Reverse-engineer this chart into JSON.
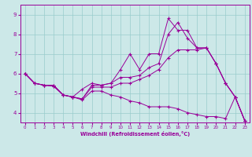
{
  "bg_color": "#cce8e8",
  "line_color": "#990099",
  "grid_color": "#99cccc",
  "xlabel": "Windchill (Refroidissement éolien,°C)",
  "ylim": [
    3.5,
    9.5
  ],
  "xlim": [
    -0.5,
    23.5
  ],
  "yticks": [
    4,
    5,
    6,
    7,
    8,
    9
  ],
  "xticks": [
    0,
    1,
    2,
    3,
    4,
    5,
    6,
    7,
    8,
    9,
    10,
    11,
    12,
    13,
    14,
    15,
    16,
    17,
    18,
    19,
    20,
    21,
    22,
    23
  ],
  "curve1_x": [
    0,
    1,
    2,
    3,
    4,
    5,
    6,
    7,
    8,
    9,
    10,
    11,
    12,
    13,
    14,
    15,
    16,
    17,
    18,
    19,
    20,
    21,
    22,
    23
  ],
  "curve1_y": [
    6.0,
    5.5,
    5.4,
    5.4,
    4.9,
    4.8,
    4.7,
    5.4,
    5.4,
    5.5,
    6.2,
    7.0,
    6.2,
    7.0,
    7.0,
    8.8,
    8.2,
    8.2,
    7.3,
    7.3,
    6.5,
    5.5,
    4.8,
    3.6
  ],
  "curve2_x": [
    0,
    1,
    2,
    3,
    4,
    5,
    6,
    7,
    8,
    9,
    10,
    11,
    12,
    13,
    14,
    15,
    16,
    17,
    18,
    19,
    20,
    21,
    22,
    23
  ],
  "curve2_y": [
    6.0,
    5.5,
    5.4,
    5.4,
    4.9,
    4.8,
    5.2,
    5.5,
    5.4,
    5.5,
    5.8,
    5.8,
    5.9,
    6.3,
    6.5,
    8.0,
    8.6,
    7.8,
    7.3,
    7.3,
    6.5,
    5.5,
    4.8,
    3.6
  ],
  "curve3_x": [
    0,
    1,
    2,
    3,
    4,
    5,
    6,
    7,
    8,
    9,
    10,
    11,
    12,
    13,
    14,
    15,
    16,
    17,
    18,
    19,
    20,
    21,
    22,
    23
  ],
  "curve3_y": [
    6.0,
    5.5,
    5.4,
    5.35,
    4.9,
    4.8,
    4.7,
    5.3,
    5.3,
    5.3,
    5.5,
    5.5,
    5.7,
    5.9,
    6.2,
    6.8,
    7.2,
    7.2,
    7.2,
    7.3,
    6.5,
    5.5,
    4.8,
    3.6
  ],
  "curve4_x": [
    0,
    1,
    2,
    3,
    4,
    5,
    6,
    7,
    8,
    9,
    10,
    11,
    12,
    13,
    14,
    15,
    16,
    17,
    18,
    19,
    20,
    21,
    22,
    23
  ],
  "curve4_y": [
    6.0,
    5.5,
    5.4,
    5.35,
    4.9,
    4.8,
    4.65,
    5.1,
    5.1,
    4.9,
    4.8,
    4.6,
    4.5,
    4.3,
    4.3,
    4.3,
    4.2,
    4.0,
    3.9,
    3.8,
    3.8,
    3.7,
    4.8,
    3.6
  ]
}
